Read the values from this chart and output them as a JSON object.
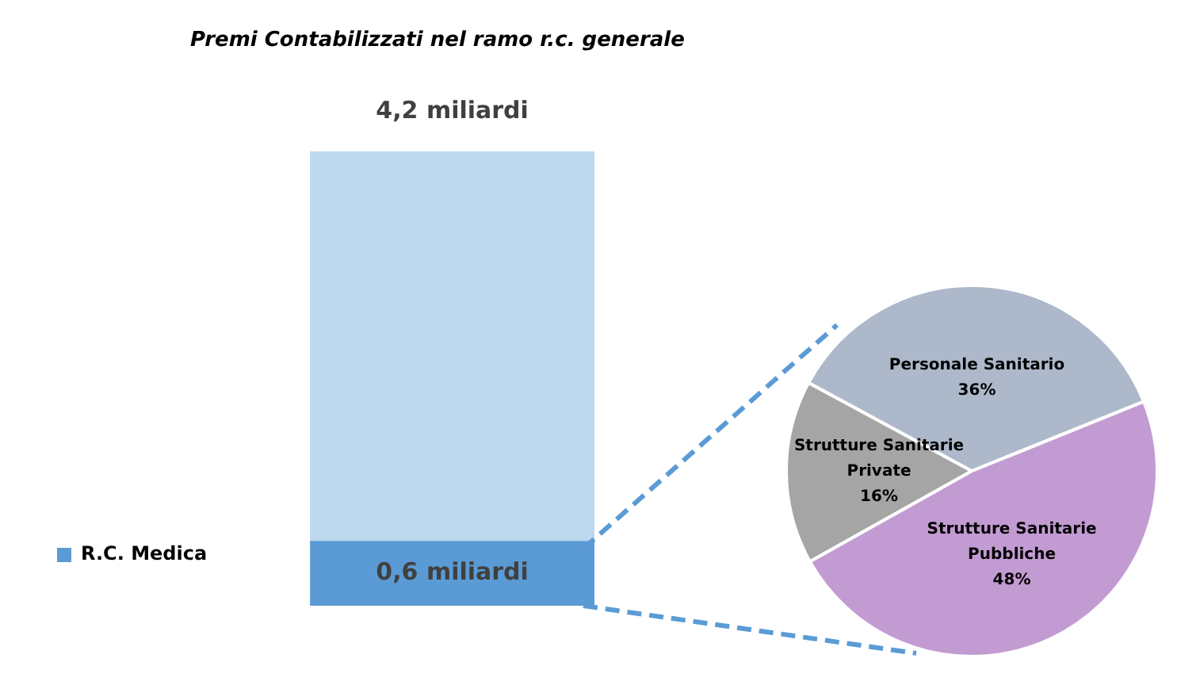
{
  "chart_data": [
    {
      "type": "bar",
      "title": "Premi Contabilizzati nel ramo r.c. generale",
      "categories": [
        null
      ],
      "stacked": true,
      "legend": "left",
      "totals": [
        "4,2 miliardi"
      ],
      "series": [
        {
          "name": "R.C. Medica",
          "color": "#5b9bd5",
          "values": [
            0.6
          ],
          "value_labels": [
            "0,6 miliardi"
          ]
        },
        {
          "color": "#bdd7ee",
          "values": [
            3.6
          ]
        }
      ]
    },
    {
      "type": "pie",
      "categories": [
        "Strutture Sanitarie Pubbliche",
        "Strutture Sanitarie Private",
        "Personale Sanitario"
      ],
      "values": [
        48,
        16,
        36
      ],
      "colors": [
        "#c39bd3",
        "#a5a5a5",
        "#adb9ca"
      ],
      "value_labels": [
        "48%",
        "16%",
        "36%"
      ]
    }
  ]
}
